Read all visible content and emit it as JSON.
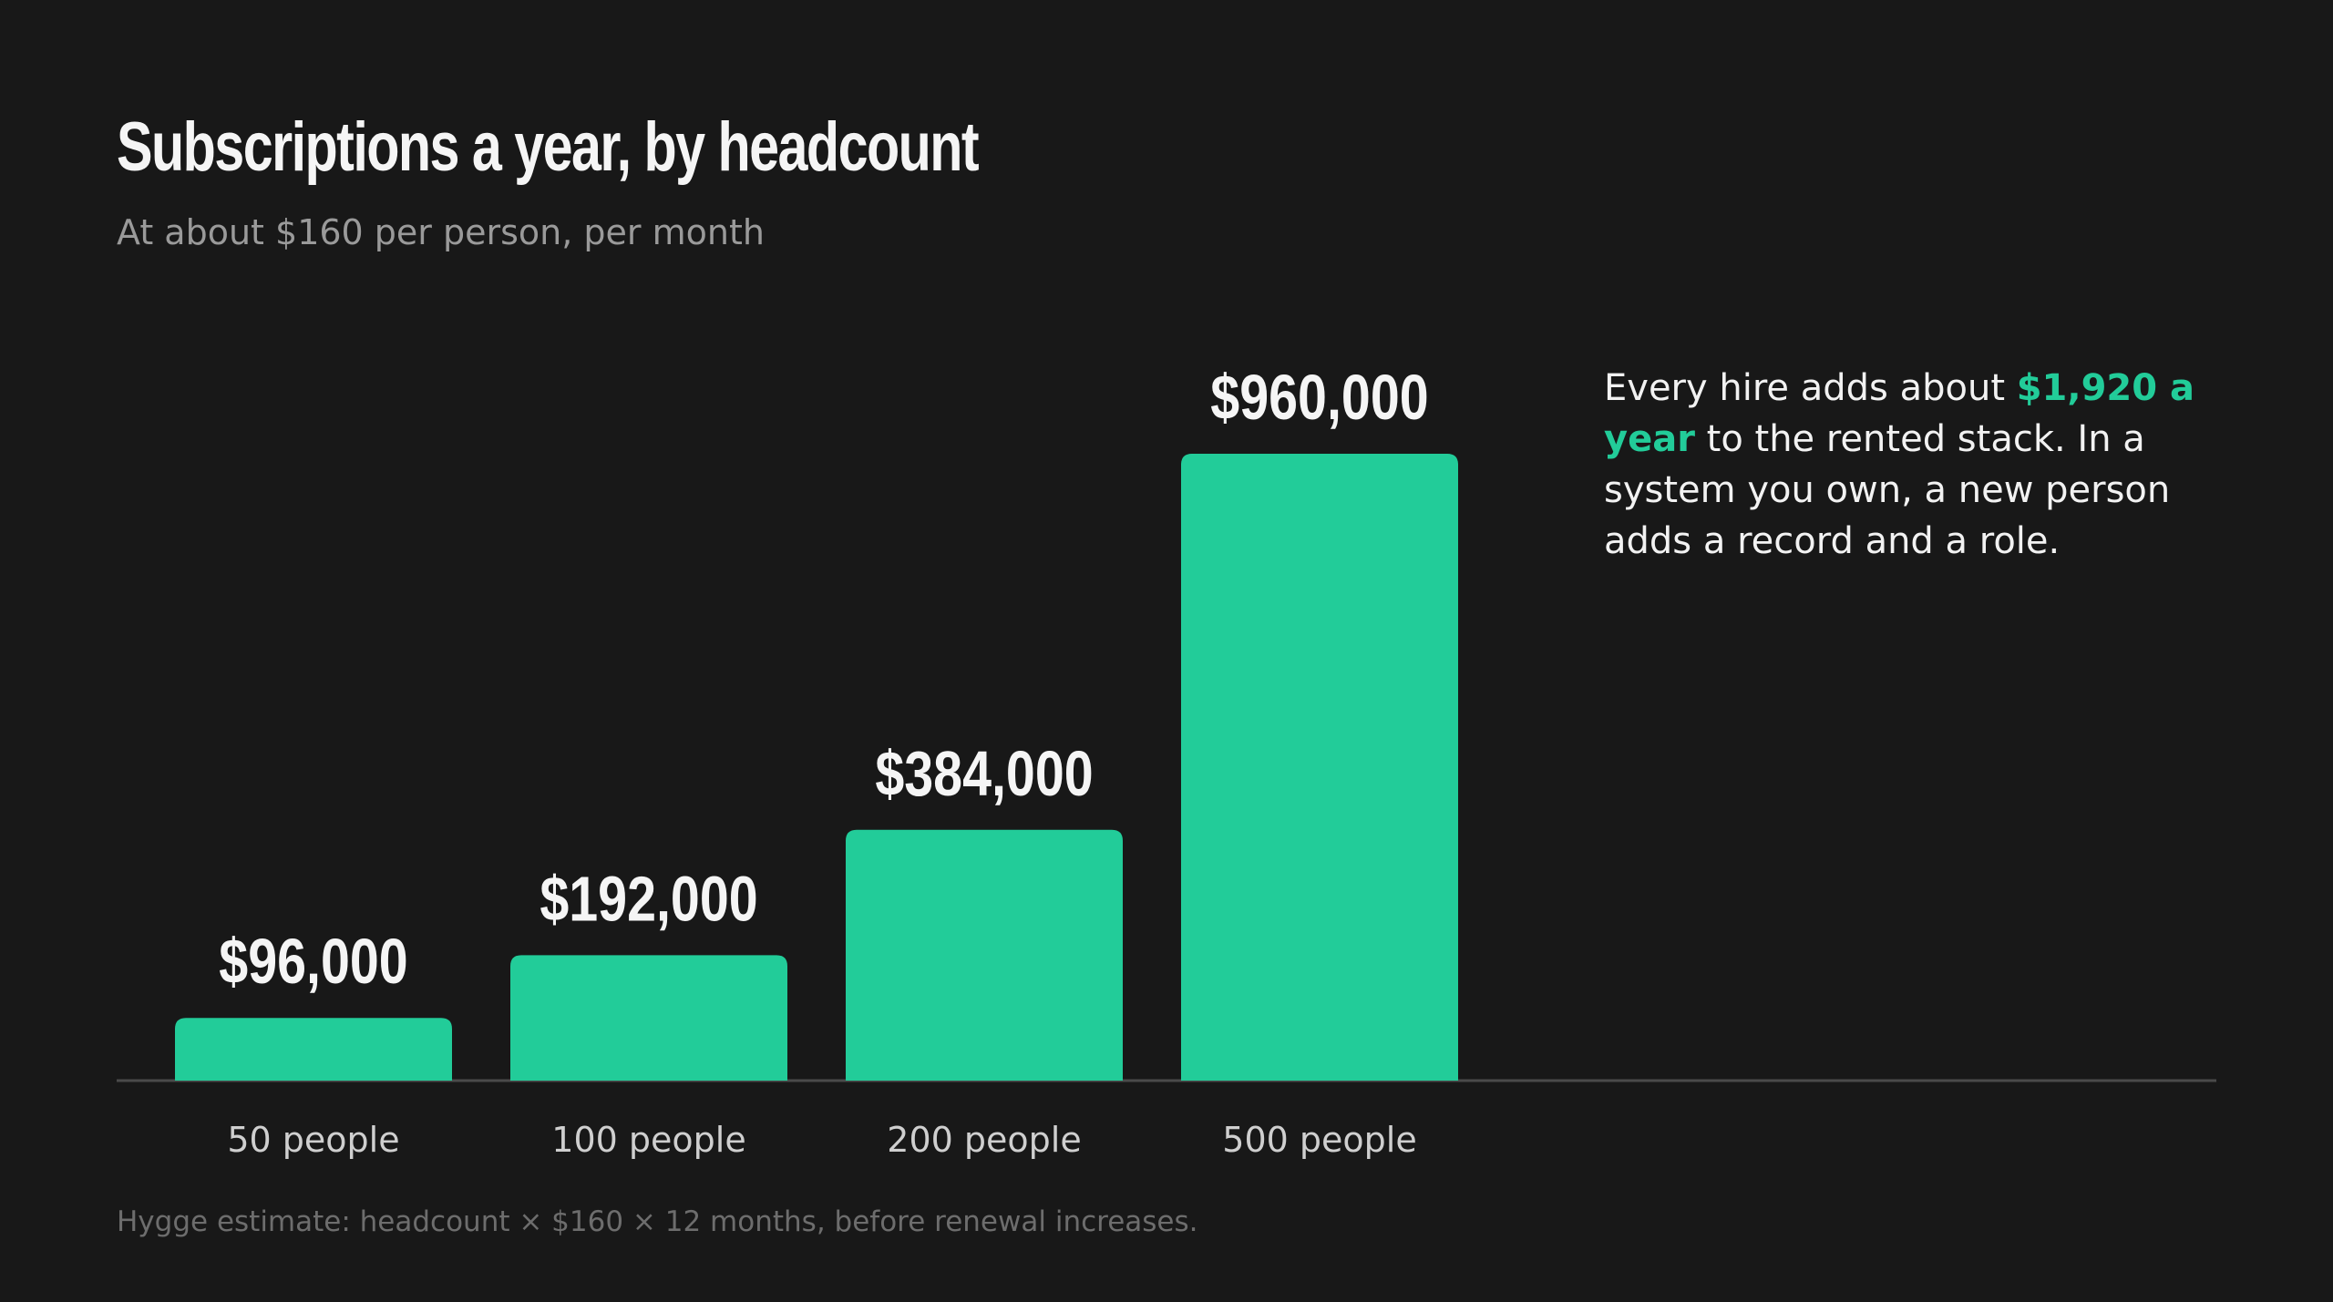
{
  "title": "Subscriptions a year, by headcount",
  "subtitle": "At about $160 per person, per month",
  "colors": {
    "background": "#181818",
    "bar": "#22cc99",
    "highlight": "#22cc99",
    "axis": "#4a4a4a"
  },
  "note": {
    "before": "Every hire adds about ",
    "highlight": "$1,920 a year",
    "after": " to the rented stack. In a system you own, a new person adds a record and a role."
  },
  "footnote": "Hygge estimate: headcount × $160 × 12 months, before renewal increases.",
  "chart_data": {
    "type": "bar",
    "title": "Subscriptions a year, by headcount",
    "subtitle": "At about $160 per person, per month",
    "categories": [
      "50 people",
      "100 people",
      "200 people",
      "500 people"
    ],
    "values": [
      96000,
      192000,
      384000,
      960000
    ],
    "value_labels": [
      "$96,000",
      "$192,000",
      "$384,000",
      "$960,000"
    ],
    "ylim": [
      0,
      960000
    ],
    "grid": false,
    "legend": "none"
  }
}
